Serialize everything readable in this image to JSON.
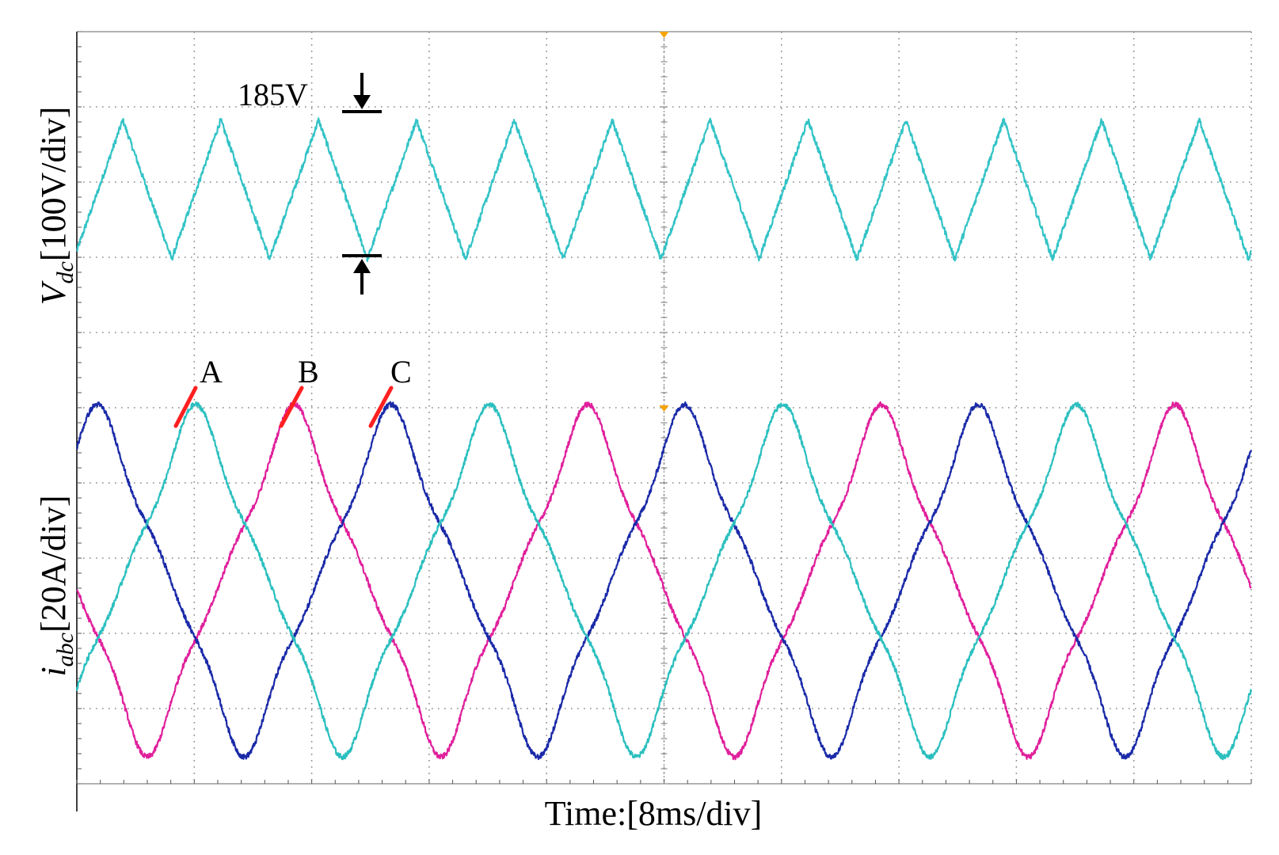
{
  "chart_data": {
    "type": "line",
    "title": "",
    "instrument": "oscilloscope",
    "xlabel": "Time:[8ms/div]",
    "time_per_div_ms": 8,
    "divisions": {
      "x": 10,
      "y": 10
    },
    "grid": true,
    "ylabel_top": {
      "symbol": "V",
      "subscript": "dc",
      "unit": "[100V/div]"
    },
    "ylabel_bottom": {
      "symbol": "i",
      "subscript": "abc",
      "unit": "[20A/div]"
    },
    "annotations": {
      "ripple": "185V",
      "phase_labels": [
        "A",
        "B",
        "C"
      ]
    },
    "series": [
      {
        "name": "Vdc",
        "color": "#33c3c6",
        "waveform": "triangle",
        "frequency_hz": 150,
        "peak_to_peak_V": 185,
        "center_div": 7.9,
        "ripple_div": 1.85,
        "phase_ms": 9.8
      },
      {
        "name": "A",
        "color": "#e0209c",
        "waveform": "phase-current",
        "frequency_hz": 50,
        "peak_div": 2.05,
        "center_div": 2.7,
        "phase_ms": 9.8
      },
      {
        "name": "B",
        "color": "#1a2aa8",
        "waveform": "phase-current",
        "frequency_hz": 50,
        "peak_div": 2.05,
        "center_div": 2.7,
        "phase_ms": 16.4
      },
      {
        "name": "C",
        "color": "#2cbfbf",
        "waveform": "phase-current",
        "frequency_hz": 50,
        "peak_div": 2.05,
        "center_div": 2.7,
        "phase_ms": 23.1
      }
    ],
    "markers": {
      "label_line_color": "#ff2020",
      "trigger_color": "#f5a300"
    }
  }
}
